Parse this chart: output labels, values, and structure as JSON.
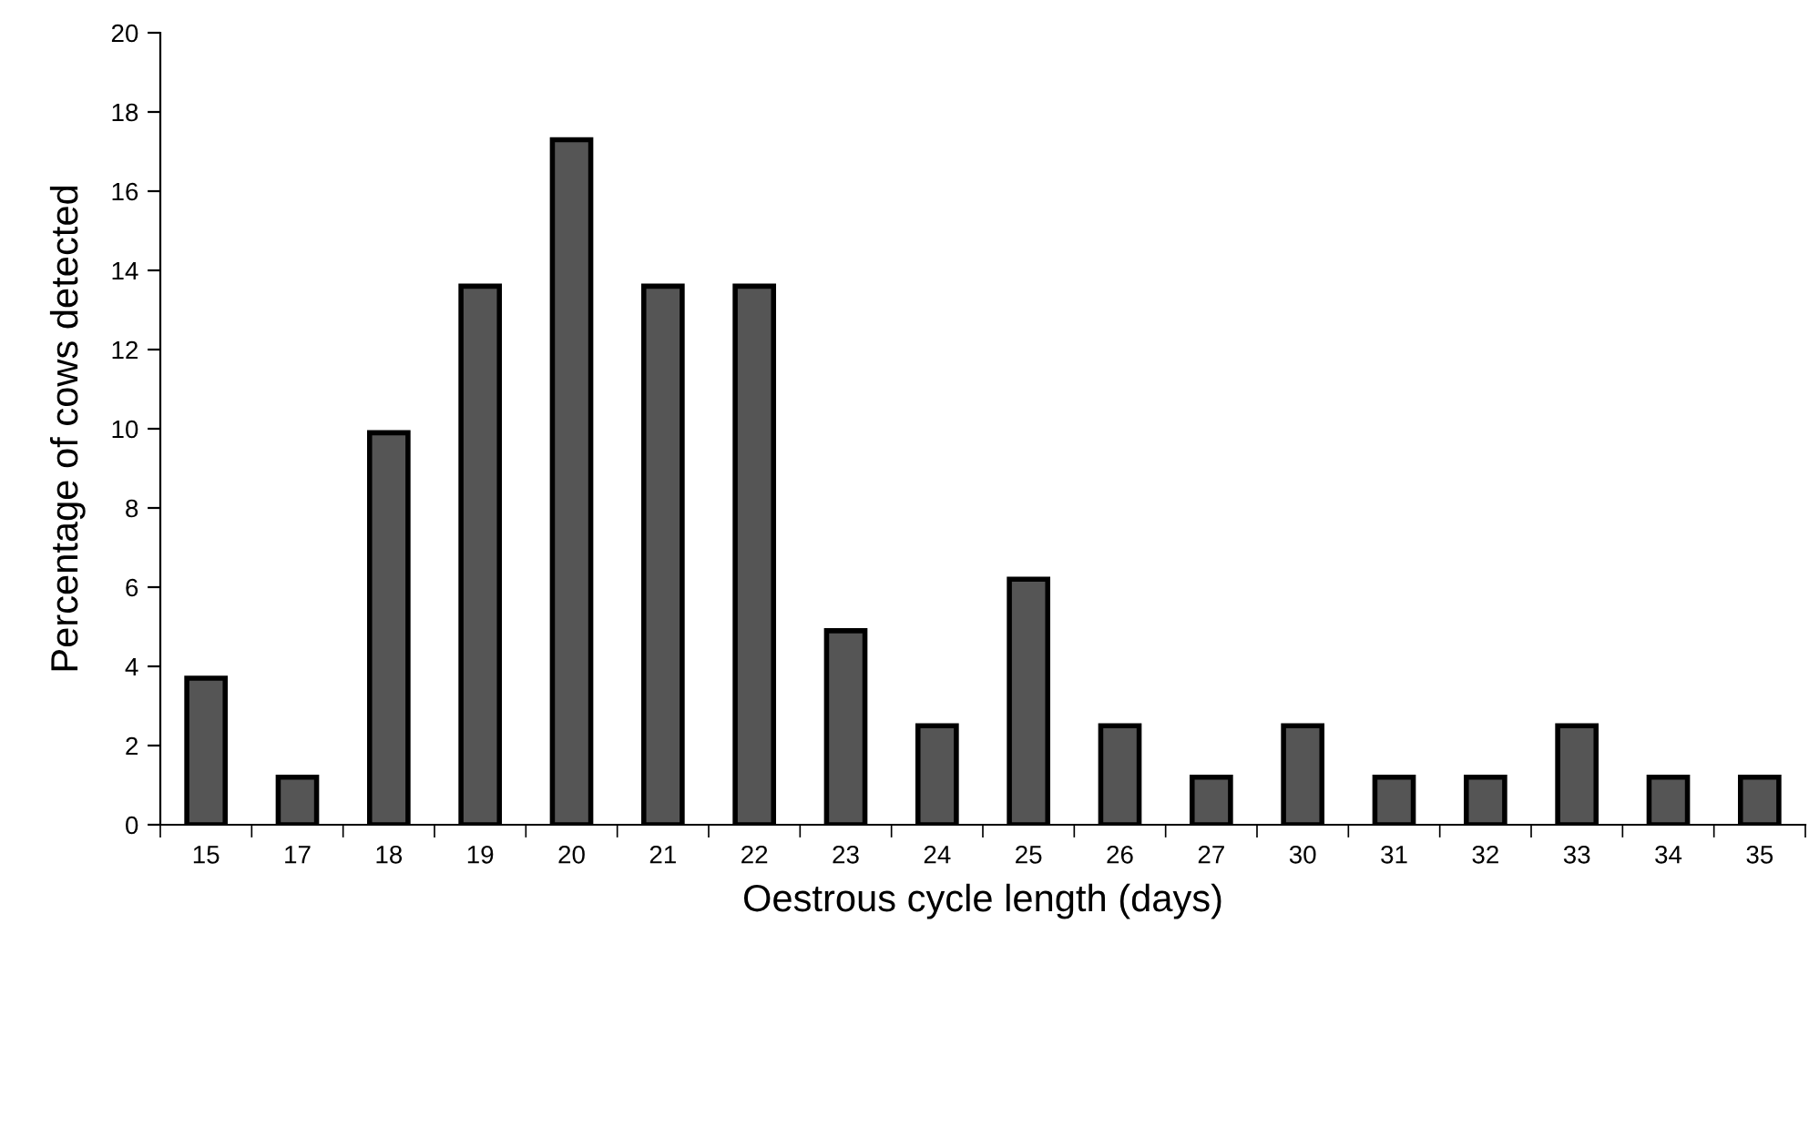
{
  "chart_data": {
    "type": "bar",
    "xlabel": "Oestrous cycle length (days)",
    "ylabel": "Percentage of cows detected",
    "categories": [
      "15",
      "17",
      "18",
      "19",
      "20",
      "21",
      "22",
      "23",
      "24",
      "25",
      "26",
      "27",
      "30",
      "31",
      "32",
      "33",
      "34",
      "35"
    ],
    "values": [
      3.7,
      1.2,
      9.9,
      13.6,
      17.3,
      13.6,
      13.6,
      4.9,
      2.5,
      6.2,
      2.5,
      1.2,
      2.5,
      1.2,
      1.2,
      2.5,
      1.2,
      1.2
    ],
    "color": "#555555",
    "ylim": [
      0,
      20
    ],
    "yticks": [
      0,
      2,
      4,
      6,
      8,
      10,
      12,
      14,
      16,
      18,
      20
    ],
    "grid": false,
    "legend": false
  }
}
